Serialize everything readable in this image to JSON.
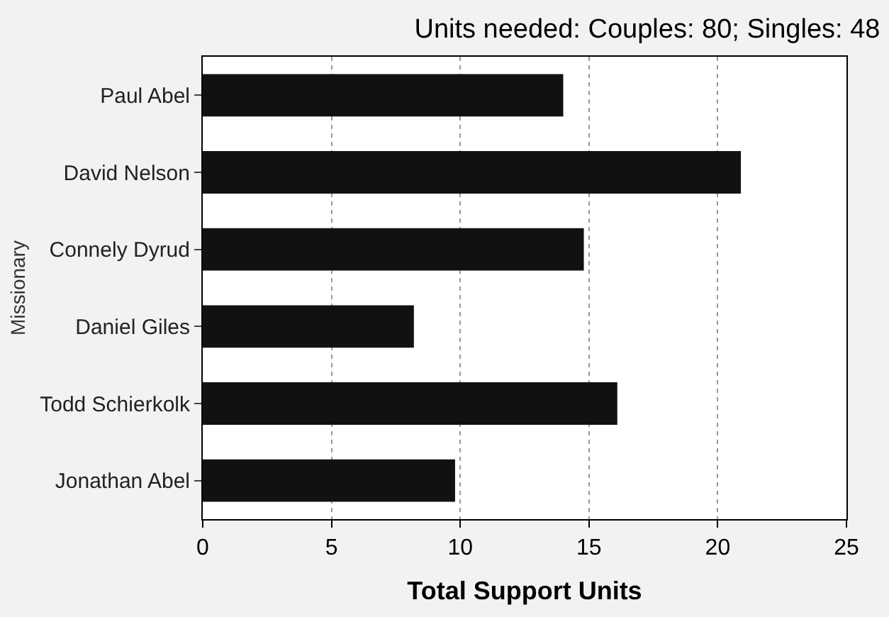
{
  "chart_data": {
    "type": "bar",
    "orientation": "horizontal",
    "title": "Units needed: Couples: 80; Singles: 48",
    "categories": [
      "Paul Abel",
      "David Nelson",
      "Connely Dyrud",
      "Daniel Giles",
      "Todd Schierkolk",
      "Jonathan Abel"
    ],
    "values": [
      14,
      20.9,
      14.8,
      8.2,
      16.1,
      9.8
    ],
    "color": "#111111",
    "xlabel": "Total Support Units",
    "ylabel": "Missionary",
    "xlim": [
      0,
      25
    ],
    "xticks": [
      0,
      5,
      10,
      15,
      20,
      25
    ],
    "grid": "x",
    "legend": false
  }
}
